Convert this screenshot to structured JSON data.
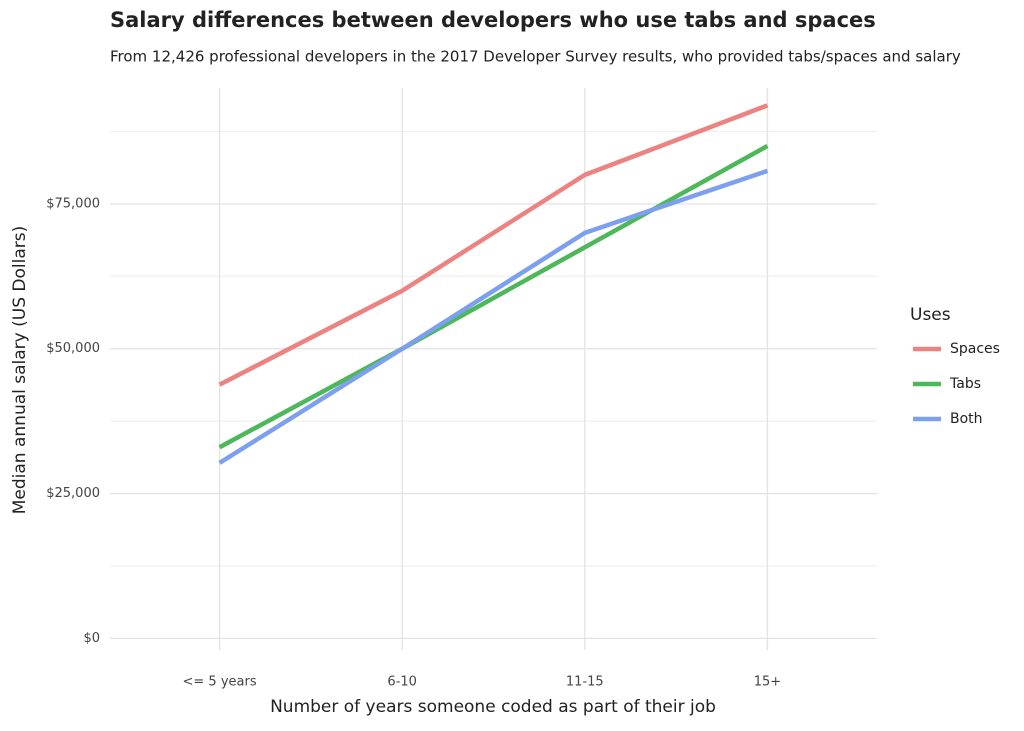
{
  "chart_data": {
    "type": "line",
    "title": "Salary differences between developers who use tabs and spaces",
    "subtitle": "From 12,426 professional developers in the 2017 Developer Survey results, who provided tabs/spaces and salary",
    "x_label": "Number of years someone coded as part of their job",
    "y_label": "Median annual salary (US Dollars)",
    "categories": [
      "<= 5 years",
      "6-10",
      "11-15",
      "15+"
    ],
    "series": [
      {
        "name": "Spaces",
        "color": "#ec8380",
        "values": [
          43800,
          60000,
          80000,
          92000
        ]
      },
      {
        "name": "Tabs",
        "color": "#4cb85a",
        "values": [
          33000,
          50000,
          67500,
          85000
        ]
      },
      {
        "name": "Both",
        "color": "#7c9ff0",
        "values": [
          30300,
          50000,
          70000,
          80700
        ]
      }
    ],
    "legend_title": "Uses",
    "legend": "right",
    "ylim": [
      -2000,
      95000
    ],
    "yticks": [
      {
        "value": 0,
        "label": "$0"
      },
      {
        "value": 25000,
        "label": "$25,000"
      },
      {
        "value": 50000,
        "label": "$50,000"
      },
      {
        "value": 75000,
        "label": "$75,000"
      }
    ],
    "grid": true,
    "minor_grid": true
  }
}
